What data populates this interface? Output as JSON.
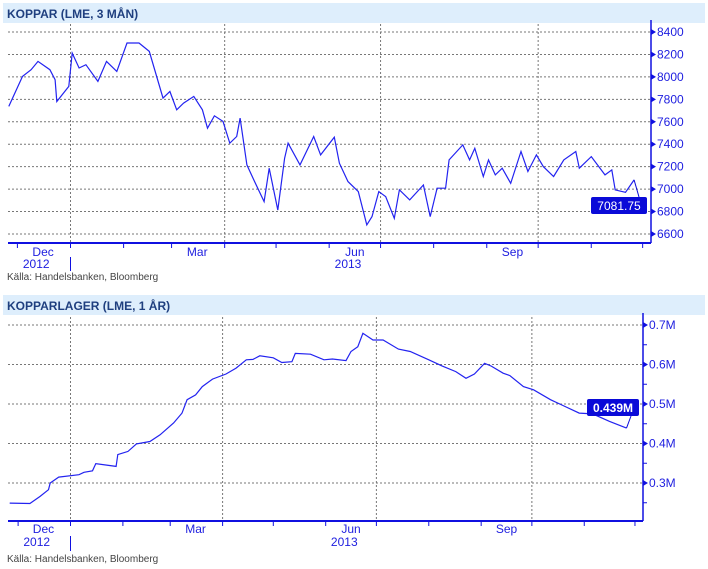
{
  "colors": {
    "line": "#2323f0",
    "axis": "#1010e0",
    "header_bg": "#deeefc",
    "title": "#1f3f7f",
    "badge": "#0a0ad8"
  },
  "chart_data": [
    {
      "type": "line",
      "title": "KOPPAR (LME, 3 MÅN)",
      "source": "Källa: Handelsbanken, Bloomberg",
      "ylim": [
        6520,
        8480
      ],
      "yticks": [
        6600,
        6800,
        7000,
        7200,
        7400,
        7600,
        7800,
        8000,
        8200,
        8400
      ],
      "ytick_labels": [
        "6600",
        "6800",
        "7000",
        "7200",
        "7400",
        "7600",
        "7800",
        "8000",
        "8200",
        "8400"
      ],
      "month_labels": [
        "Dec",
        "Mar",
        "Jun",
        "Sep"
      ],
      "year_labels": [
        "2012",
        "2013"
      ],
      "last_value_label": "7081.75",
      "grid": true,
      "points": [
        [
          "2012-11-26",
          7737
        ],
        [
          "2012-12-04",
          8004
        ],
        [
          "2012-12-09",
          8064
        ],
        [
          "2012-12-13",
          8138
        ],
        [
          "2012-12-20",
          8064
        ],
        [
          "2012-12-23",
          7975
        ],
        [
          "2012-12-24",
          7781
        ],
        [
          "2012-12-31",
          7915
        ],
        [
          "2013-01-02",
          8212
        ],
        [
          "2013-01-06",
          8079
        ],
        [
          "2013-01-10",
          8109
        ],
        [
          "2013-01-17",
          7960
        ],
        [
          "2013-01-22",
          8138
        ],
        [
          "2013-01-28",
          8049
        ],
        [
          "2013-02-03",
          8302
        ],
        [
          "2013-02-10",
          8302
        ],
        [
          "2013-02-16",
          8227
        ],
        [
          "2013-02-24",
          7811
        ],
        [
          "2013-02-28",
          7870
        ],
        [
          "2013-03-04",
          7707
        ],
        [
          "2013-03-08",
          7766
        ],
        [
          "2013-03-14",
          7826
        ],
        [
          "2013-03-19",
          7707
        ],
        [
          "2013-03-22",
          7543
        ],
        [
          "2013-03-26",
          7653
        ],
        [
          "2013-03-31",
          7603
        ],
        [
          "2013-04-04",
          7409
        ],
        [
          "2013-04-08",
          7469
        ],
        [
          "2013-04-10",
          7633
        ],
        [
          "2013-04-14",
          7216
        ],
        [
          "2013-04-18",
          7082
        ],
        [
          "2013-04-24",
          6889
        ],
        [
          "2013-04-27",
          7186
        ],
        [
          "2013-05-02",
          6814
        ],
        [
          "2013-05-06",
          7275
        ],
        [
          "2013-05-08",
          7409
        ],
        [
          "2013-05-15",
          7216
        ],
        [
          "2013-05-23",
          7469
        ],
        [
          "2013-05-27",
          7305
        ],
        [
          "2013-06-04",
          7463
        ],
        [
          "2013-06-07",
          7231
        ],
        [
          "2013-06-12",
          7067
        ],
        [
          "2013-06-18",
          6978
        ],
        [
          "2013-06-23",
          6681
        ],
        [
          "2013-06-26",
          6755
        ],
        [
          "2013-06-30",
          6978
        ],
        [
          "2013-07-04",
          6933
        ],
        [
          "2013-07-09",
          6740
        ],
        [
          "2013-07-12",
          6994
        ],
        [
          "2013-07-18",
          6904
        ],
        [
          "2013-07-26",
          7037
        ],
        [
          "2013-07-30",
          6755
        ],
        [
          "2013-08-03",
          7008
        ],
        [
          "2013-08-08",
          7008
        ],
        [
          "2013-08-10",
          7260
        ],
        [
          "2013-08-18",
          7394
        ],
        [
          "2013-08-22",
          7260
        ],
        [
          "2013-08-25",
          7364
        ],
        [
          "2013-08-30",
          7112
        ],
        [
          "2013-09-02",
          7260
        ],
        [
          "2013-09-06",
          7127
        ],
        [
          "2013-09-10",
          7186
        ],
        [
          "2013-09-15",
          7052
        ],
        [
          "2013-09-21",
          7335
        ],
        [
          "2013-09-25",
          7157
        ],
        [
          "2013-09-30",
          7305
        ],
        [
          "2013-10-04",
          7201
        ],
        [
          "2013-10-10",
          7112
        ],
        [
          "2013-10-16",
          7260
        ],
        [
          "2013-10-23",
          7335
        ],
        [
          "2013-10-25",
          7186
        ],
        [
          "2013-11-01",
          7290
        ],
        [
          "2013-11-09",
          7127
        ],
        [
          "2013-11-13",
          7171
        ],
        [
          "2013-11-15",
          6993
        ],
        [
          "2013-11-21",
          6972
        ],
        [
          "2013-11-26",
          7082
        ]
      ]
    },
    {
      "type": "line",
      "title": "KOPPARLAGER (LME, 1 ÅR)",
      "source": "Källa: Handelsbanken, Bloomberg",
      "ylim": [
        0.215,
        0.71
      ],
      "yticks": [
        0.3,
        0.4,
        0.5,
        0.6,
        0.7
      ],
      "ytick_labels": [
        "0.3M",
        "0.4M",
        "0.5M",
        "0.6M",
        "0.7M"
      ],
      "month_labels": [
        "Dec",
        "Mar",
        "Jun",
        "Sep"
      ],
      "year_labels": [
        "2012",
        "2013"
      ],
      "last_value_label": "0.439M",
      "grid": true,
      "points": [
        [
          "2012-11-26",
          0.249
        ],
        [
          "2012-12-08",
          0.248
        ],
        [
          "2012-12-14",
          0.266
        ],
        [
          "2012-12-19",
          0.283
        ],
        [
          "2012-12-20",
          0.3
        ],
        [
          "2012-12-25",
          0.315
        ],
        [
          "2013-01-06",
          0.321
        ],
        [
          "2013-01-09",
          0.327
        ],
        [
          "2013-01-14",
          0.331
        ],
        [
          "2013-01-16",
          0.349
        ],
        [
          "2013-01-28",
          0.342
        ],
        [
          "2013-01-29",
          0.372
        ],
        [
          "2013-02-04",
          0.38
        ],
        [
          "2013-02-09",
          0.399
        ],
        [
          "2013-02-17",
          0.405
        ],
        [
          "2013-02-23",
          0.422
        ],
        [
          "2013-03-03",
          0.452
        ],
        [
          "2013-03-08",
          0.477
        ],
        [
          "2013-03-11",
          0.511
        ],
        [
          "2013-03-16",
          0.523
        ],
        [
          "2013-03-20",
          0.544
        ],
        [
          "2013-03-26",
          0.563
        ],
        [
          "2013-04-03",
          0.576
        ],
        [
          "2013-04-09",
          0.591
        ],
        [
          "2013-04-15",
          0.612
        ],
        [
          "2013-04-19",
          0.613
        ],
        [
          "2013-04-23",
          0.622
        ],
        [
          "2013-05-01",
          0.617
        ],
        [
          "2013-05-06",
          0.605
        ],
        [
          "2013-05-12",
          0.607
        ],
        [
          "2013-05-14",
          0.628
        ],
        [
          "2013-05-23",
          0.626
        ],
        [
          "2013-05-31",
          0.612
        ],
        [
          "2013-06-05",
          0.614
        ],
        [
          "2013-06-13",
          0.61
        ],
        [
          "2013-06-16",
          0.633
        ],
        [
          "2013-06-20",
          0.645
        ],
        [
          "2013-06-23",
          0.679
        ],
        [
          "2013-06-29",
          0.662
        ],
        [
          "2013-07-05",
          0.662
        ],
        [
          "2013-07-14",
          0.639
        ],
        [
          "2013-07-21",
          0.633
        ],
        [
          "2013-08-01",
          0.612
        ],
        [
          "2013-08-09",
          0.596
        ],
        [
          "2013-08-17",
          0.582
        ],
        [
          "2013-08-23",
          0.565
        ],
        [
          "2013-08-28",
          0.576
        ],
        [
          "2013-09-03",
          0.603
        ],
        [
          "2013-09-07",
          0.596
        ],
        [
          "2013-09-14",
          0.578
        ],
        [
          "2013-09-18",
          0.572
        ],
        [
          "2013-09-26",
          0.544
        ],
        [
          "2013-10-02",
          0.536
        ],
        [
          "2013-10-12",
          0.511
        ],
        [
          "2013-10-20",
          0.495
        ],
        [
          "2013-10-29",
          0.477
        ],
        [
          "2013-11-06",
          0.475
        ],
        [
          "2013-11-16",
          0.456
        ],
        [
          "2013-11-26",
          0.439
        ]
      ]
    }
  ]
}
